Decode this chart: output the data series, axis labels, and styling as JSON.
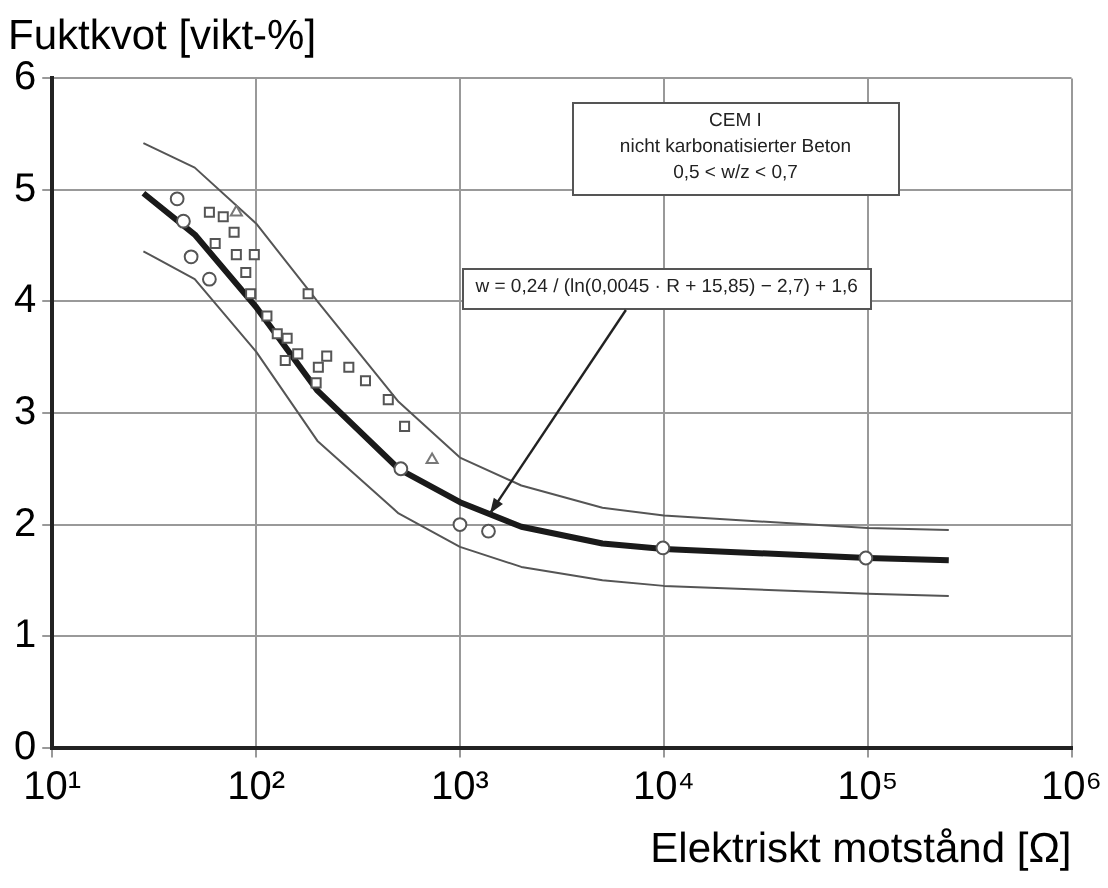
{
  "chart_data": {
    "type": "scatter",
    "title": "Fuktkvot [vikt-%]",
    "xlabel": "Elektriskt motstånd [Ω]",
    "log": "x",
    "xlim": [
      10,
      1000000
    ],
    "xticks": [
      {
        "value": 10,
        "label": "10¹"
      },
      {
        "value": 100,
        "label": "10²"
      },
      {
        "value": 1000,
        "label": "10³"
      },
      {
        "value": 10000,
        "label": "10⁴"
      },
      {
        "value": 100000,
        "label": "10⁵"
      },
      {
        "value": 1000000,
        "label": "10⁶"
      }
    ],
    "ylim": [
      0,
      6
    ],
    "yticks": [
      0,
      1,
      2,
      3,
      4,
      5,
      6
    ],
    "grid": true,
    "legend": false,
    "series": [
      {
        "type": "line",
        "color": "#1a1a1a",
        "marker": "none",
        "x": [
          28,
          50,
          100,
          200,
          500,
          1000,
          2000,
          5000,
          10000,
          100000,
          250000
        ],
        "values": [
          4.97,
          4.6,
          3.95,
          3.2,
          2.5,
          2.2,
          1.98,
          1.83,
          1.78,
          1.7,
          1.68
        ]
      },
      {
        "type": "line",
        "color": "#555555",
        "marker": "none",
        "x": [
          28,
          50,
          100,
          200,
          500,
          1000,
          2000,
          5000,
          10000,
          100000,
          250000
        ],
        "values": [
          5.42,
          5.2,
          4.7,
          4.0,
          3.1,
          2.6,
          2.35,
          2.15,
          2.08,
          1.97,
          1.95
        ]
      },
      {
        "type": "line",
        "color": "#555555",
        "marker": "none",
        "x": [
          28,
          50,
          100,
          200,
          500,
          1000,
          2000,
          5000,
          10000,
          100000,
          250000
        ],
        "values": [
          4.45,
          4.2,
          3.55,
          2.75,
          2.1,
          1.8,
          1.62,
          1.5,
          1.45,
          1.38,
          1.36
        ]
      },
      {
        "color": "#555555",
        "marker": "circle",
        "x": [
          41,
          44,
          48,
          59,
          513,
          1000,
          1380,
          9900,
          98000
        ],
        "values": [
          4.92,
          4.72,
          4.4,
          4.2,
          2.5,
          2.0,
          1.94,
          1.79,
          1.7
        ]
      },
      {
        "color": "#555555",
        "marker": "square",
        "x": [
          59,
          69,
          63,
          78,
          80,
          89,
          98,
          94,
          113,
          127,
          142,
          180,
          139,
          160,
          197,
          202,
          222,
          285,
          344,
          445,
          535
        ],
        "values": [
          4.8,
          4.76,
          4.52,
          4.62,
          4.42,
          4.26,
          4.42,
          4.07,
          3.87,
          3.71,
          3.67,
          4.07,
          3.47,
          3.53,
          3.27,
          3.41,
          3.51,
          3.41,
          3.29,
          3.12,
          2.88
        ]
      },
      {
        "color": "#777777",
        "marker": "triangle",
        "x": [
          80,
          730
        ],
        "values": [
          4.8,
          2.58
        ]
      }
    ],
    "annotations": [
      "CEM I\nnicht karbonatisierter Beton\n0,5 < w/z < 0,7",
      {
        "text": "w = 0,24 / (ln(0,0045 · R + 15,85) − 2,7) + 1,6",
        "x": 1400,
        "y": 2.1
      }
    ]
  }
}
